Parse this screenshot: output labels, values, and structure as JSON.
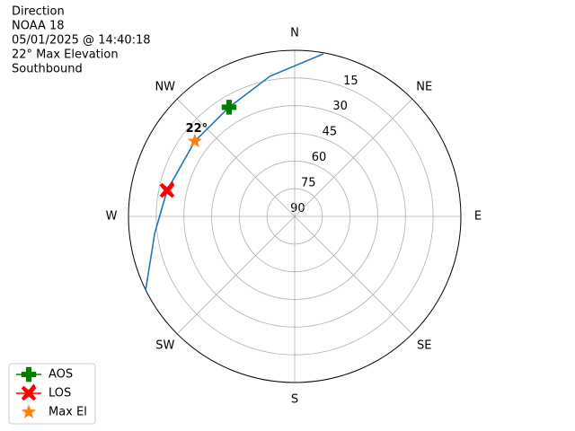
{
  "chart_data": {
    "type": "polar",
    "title": [
      "Direction",
      "NOAA 18",
      "05/01/2025 @ 14:40:18",
      "22° Max Elevation",
      "Southbound"
    ],
    "theta_zero": "N",
    "theta_direction": "clockwise",
    "xticks": [
      {
        "value": 0,
        "label": "N"
      },
      {
        "value": 45,
        "label": "NE"
      },
      {
        "value": 90,
        "label": "E"
      },
      {
        "value": 135,
        "label": "SE"
      },
      {
        "value": 180,
        "label": "S"
      },
      {
        "value": 225,
        "label": "SW"
      },
      {
        "value": 270,
        "label": "W"
      },
      {
        "value": 315,
        "label": "NW"
      }
    ],
    "ylim": [
      90,
      0
    ],
    "yticks": [
      15,
      30,
      45,
      60,
      75,
      90
    ],
    "grid": true,
    "legend": "lower left",
    "series": [
      {
        "color": "#1f77b4",
        "marker": "none",
        "x": [
          10,
          350,
          329,
          307,
          281.5,
          263,
          243.7
        ],
        "values": [
          0.6,
          12.9,
          21,
          22.3,
          19.5,
          13.6,
          0
        ]
      },
      {
        "name": "AOS",
        "color": "#008000",
        "marker": "plus",
        "x": [
          329
        ],
        "values": [
          21
        ]
      },
      {
        "name": "LOS",
        "color": "#ff0000",
        "marker": "x",
        "x": [
          281.5
        ],
        "values": [
          19.5
        ]
      },
      {
        "name": "Max El",
        "color": "#ff7f0e",
        "marker": "star",
        "x": [
          307
        ],
        "values": [
          22.3
        ]
      }
    ],
    "annotations": [
      {
        "text": "22°",
        "series": 3
      }
    ]
  }
}
